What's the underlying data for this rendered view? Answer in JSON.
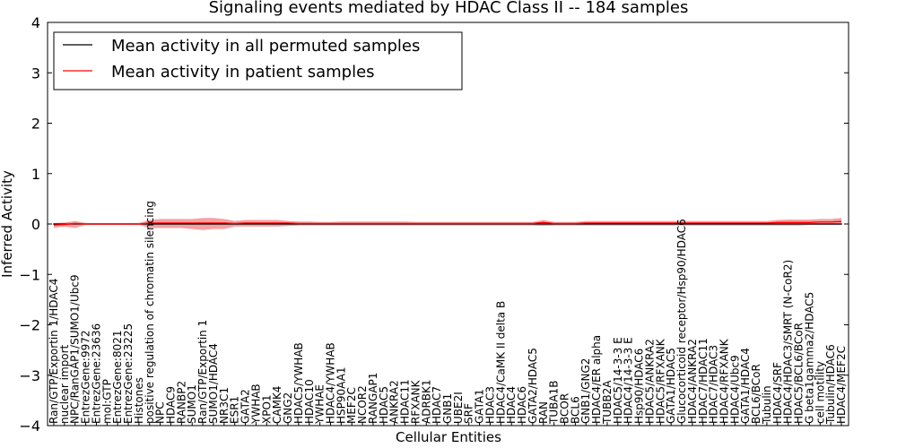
{
  "chart_data": {
    "type": "line",
    "title": "Signaling events mediated by HDAC Class II -- 184 samples",
    "xlabel": "Cellular Entities",
    "ylabel": "Inferred Activity",
    "ylim": [
      -4,
      4
    ],
    "yticks": [
      "−4",
      "−3",
      "−2",
      "−1",
      "0",
      "1",
      "2",
      "3",
      "4"
    ],
    "ytick_values": [
      -4,
      -3,
      -2,
      -1,
      0,
      1,
      2,
      3,
      4
    ],
    "legend": {
      "placement": "top-left",
      "entries": [
        {
          "label": "Mean activity in all permuted samples",
          "color": "#000000"
        },
        {
          "label": "Mean activity in patient samples",
          "color": "#ff0000"
        }
      ]
    },
    "categories": [
      "Ran/GTP/Exportin 1/HDAC4",
      "nuclear import",
      "NPC/RanGAP1/SUMO1/Ubc9",
      "EntrezGene:9972",
      "EntrezGene:23636",
      "mol:GTP",
      "EntrezGene:8021",
      "EntrezGene:23225",
      "Histones",
      "positive regulation of chromatin silencing",
      "NPC",
      "HDAC9",
      "RANBP2",
      "SUMO1",
      "Ran/GTP/Exportin 1",
      "SUMO1/HDAC4",
      "NR3C1",
      "ESR1",
      "GATA2",
      "YWHAB",
      "XPO1",
      "CAMK4",
      "GNG2",
      "HDAC5/YWHAB",
      "HDAC10",
      "YWHAE",
      "HDAC4/YWHAB",
      "HSP90AA1",
      "MEF2C",
      "NCOR2",
      "RANGAP1",
      "HDAC5",
      "ANKRA2",
      "HDAC11",
      "RFXANK",
      "ADRBK1",
      "HDAC7",
      "GNB1",
      "UBE2I",
      "SRF",
      "GATA1",
      "HDAC3",
      "HDAC4/CaMK II delta B",
      "HDAC4",
      "HDAC6",
      "GATA2/HDAC5",
      "RAN",
      "TUBA1B",
      "BCOR",
      "BCL6",
      "GNB1/GNG2",
      "HDAC4/ER alpha",
      "TUBB2A",
      "HDAC5/14-3-3 E",
      "HDAC4/14-3-3 E",
      "Hsp90/HDAC6",
      "HDAC5/ANKRA2",
      "HDAC5/RFXANK",
      "GATA1/HDAC5",
      "Glucocorticoid receptor/Hsp90/HDAC6",
      "HDAC4/ANKRA2",
      "HDAC7/HDAC11",
      "HDAC7/HDAC3",
      "HDAC4/RFXANK",
      "HDAC4/Ubc9",
      "GATA1/HDAC4",
      "BCL6/BCoR",
      "Tubulin",
      "HDAC4/SRF",
      "HDAC4/HDAC3/SMRT (N-CoR2)",
      "HDAC5/BCL6/BCoR",
      "G beta1gamma2/HDAC5",
      "cell motility",
      "Tubulin/HDAC6",
      "HDAC4/MEF2C"
    ],
    "series": [
      {
        "name": "Mean activity in all permuted samples",
        "values": [
          0,
          0,
          0,
          0,
          0,
          0,
          0,
          0,
          0,
          0,
          0,
          0,
          0,
          0,
          0,
          0,
          0,
          0,
          0,
          0,
          0,
          0,
          0,
          0,
          0,
          0,
          0,
          0,
          0,
          0,
          0,
          0,
          0,
          0,
          0,
          0,
          0,
          0,
          0,
          0,
          0,
          0,
          0,
          0,
          0,
          0,
          0,
          0,
          0,
          0,
          0,
          0,
          0,
          0,
          0,
          0,
          0,
          0,
          0,
          0,
          0,
          0,
          0,
          0,
          0,
          0,
          0,
          0,
          0,
          0,
          0,
          0,
          0,
          0,
          0
        ]
      },
      {
        "name": "Mean activity in patient samples",
        "values": [
          -0.02,
          -0.01,
          0.01,
          0.0,
          0.0,
          0.0,
          0.0,
          0.0,
          0.0,
          0.02,
          0.02,
          0.02,
          0.02,
          0.02,
          0.02,
          0.02,
          0.02,
          0.01,
          0.02,
          0.02,
          0.02,
          0.02,
          0.02,
          0.01,
          0.01,
          0.01,
          0.01,
          0.01,
          0.01,
          0.01,
          0.01,
          0.01,
          0.01,
          0.01,
          0.01,
          0.01,
          0.01,
          0.01,
          0.01,
          0.01,
          0.01,
          0.01,
          0.01,
          0.01,
          0.01,
          0.01,
          0.03,
          0.01,
          0.01,
          0.01,
          0.02,
          0.02,
          0.02,
          0.02,
          0.02,
          0.02,
          0.02,
          0.02,
          0.02,
          0.02,
          0.02,
          0.02,
          0.02,
          0.02,
          0.02,
          0.02,
          0.02,
          0.02,
          0.03,
          0.03,
          0.03,
          0.03,
          0.04,
          0.04,
          0.05
        ],
        "band_upper": [
          0.02,
          0.03,
          0.06,
          0.02,
          0.02,
          0.02,
          0.02,
          0.02,
          0.02,
          0.08,
          0.1,
          0.1,
          0.1,
          0.1,
          0.12,
          0.12,
          0.1,
          0.06,
          0.08,
          0.08,
          0.08,
          0.08,
          0.06,
          0.05,
          0.05,
          0.04,
          0.04,
          0.05,
          0.05,
          0.05,
          0.05,
          0.05,
          0.05,
          0.05,
          0.04,
          0.04,
          0.04,
          0.04,
          0.04,
          0.04,
          0.04,
          0.04,
          0.04,
          0.04,
          0.04,
          0.04,
          0.08,
          0.04,
          0.04,
          0.04,
          0.06,
          0.06,
          0.06,
          0.06,
          0.06,
          0.06,
          0.06,
          0.06,
          0.06,
          0.06,
          0.06,
          0.06,
          0.06,
          0.06,
          0.06,
          0.06,
          0.06,
          0.06,
          0.08,
          0.09,
          0.09,
          0.09,
          0.1,
          0.1,
          0.12
        ],
        "band_lower": [
          -0.08,
          -0.05,
          -0.08,
          -0.02,
          -0.02,
          -0.02,
          -0.02,
          -0.02,
          -0.02,
          -0.08,
          -0.08,
          -0.08,
          -0.08,
          -0.1,
          -0.12,
          -0.1,
          -0.1,
          -0.05,
          -0.05,
          -0.05,
          -0.05,
          -0.05,
          -0.04,
          -0.03,
          -0.03,
          -0.03,
          -0.03,
          -0.03,
          -0.03,
          -0.03,
          -0.03,
          -0.03,
          -0.03,
          -0.03,
          -0.03,
          -0.03,
          -0.03,
          -0.03,
          -0.03,
          -0.03,
          -0.03,
          -0.03,
          -0.03,
          -0.03,
          -0.03,
          -0.03,
          -0.04,
          -0.03,
          -0.03,
          -0.03,
          -0.03,
          -0.03,
          -0.03,
          -0.03,
          -0.03,
          -0.03,
          -0.03,
          -0.03,
          -0.03,
          -0.03,
          -0.03,
          -0.03,
          -0.03,
          -0.03,
          -0.03,
          -0.03,
          -0.03,
          -0.03,
          -0.03,
          -0.03,
          -0.03,
          -0.02,
          -0.02,
          -0.02,
          -0.02
        ],
        "permuted_band": [
          0.01,
          0.01,
          0.01,
          0.01,
          0.01,
          0.01,
          0.01,
          0.01,
          0.01,
          0.01,
          0.01,
          0.01,
          0.01,
          0.01,
          0.01,
          0.01,
          0.01,
          0.01,
          0.01,
          0.01,
          0.01,
          0.01,
          0.01,
          0.01,
          0.01,
          0.01,
          0.01,
          0.01,
          0.01,
          0.01,
          0.01,
          0.01,
          0.01,
          0.01,
          0.01,
          0.01,
          0.01,
          0.01,
          0.01,
          0.01,
          0.01,
          0.01,
          0.01,
          0.01,
          0.01,
          0.01,
          0.01,
          0.01,
          0.01,
          0.01,
          0.01,
          0.01,
          0.01,
          0.01,
          0.01,
          0.01,
          0.01,
          0.01,
          0.01,
          0.01,
          0.01,
          0.01,
          0.01,
          0.01,
          0.01,
          0.01,
          0.01,
          0.01,
          0.01,
          0.01,
          0.01,
          0.01,
          0.01,
          0.01,
          0.01
        ]
      }
    ]
  }
}
